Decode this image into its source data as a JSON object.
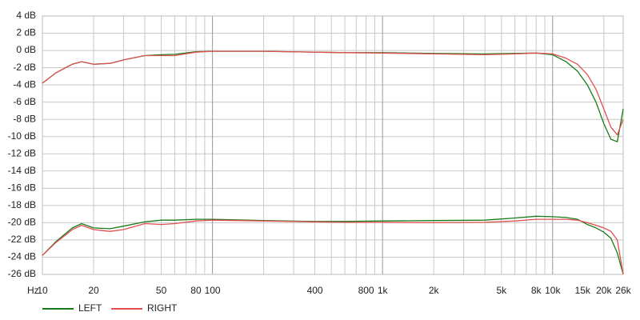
{
  "chart_data": {
    "type": "line",
    "log_x": true,
    "grid": true,
    "x_unit_label": "Hz",
    "xlim": [
      10,
      26000
    ],
    "ylim": [
      -26,
      4
    ],
    "xticks": [
      10,
      20,
      50,
      80,
      100,
      400,
      800,
      {
        "value": 1000,
        "label": "1k"
      },
      {
        "value": 2000,
        "label": "2k"
      },
      {
        "value": 5000,
        "label": "5k"
      },
      {
        "value": 8000,
        "label": "8k"
      },
      {
        "value": 10000,
        "label": "10k"
      },
      {
        "value": 15000,
        "label": "15k"
      },
      {
        "value": 20000,
        "label": "20k"
      },
      {
        "value": 26000,
        "label": "26k"
      }
    ],
    "xgrid": [
      10,
      20,
      30,
      40,
      50,
      60,
      70,
      80,
      90,
      100,
      200,
      300,
      400,
      500,
      600,
      700,
      800,
      900,
      1000,
      2000,
      3000,
      4000,
      5000,
      6000,
      7000,
      8000,
      9000,
      10000,
      20000,
      26000
    ],
    "xgrid_major": [
      10,
      100,
      1000,
      10000
    ],
    "yticks": [
      {
        "value": 4,
        "label": "4 dB"
      },
      {
        "value": 2,
        "label": "2 dB"
      },
      {
        "value": 0,
        "label": "0 dB"
      },
      {
        "value": -2,
        "label": "-2 dB"
      },
      {
        "value": -4,
        "label": "-4 dB"
      },
      {
        "value": -6,
        "label": "-6 dB"
      },
      {
        "value": -8,
        "label": "-8 dB"
      },
      {
        "value": -10,
        "label": "-10 dB"
      },
      {
        "value": -12,
        "label": "-12 dB"
      },
      {
        "value": -14,
        "label": "-14 dB"
      },
      {
        "value": -16,
        "label": "-16 dB"
      },
      {
        "value": -18,
        "label": "-18 dB"
      },
      {
        "value": -20,
        "label": "-20 dB"
      },
      {
        "value": -22,
        "label": "-22 dB"
      },
      {
        "value": -24,
        "label": "-24 dB"
      },
      {
        "value": -26,
        "label": "-26 dB"
      }
    ],
    "x": [
      10,
      12,
      15,
      17,
      20,
      25,
      30,
      40,
      50,
      60,
      80,
      100,
      200,
      400,
      600,
      1000,
      2000,
      4000,
      6000,
      8000,
      10000,
      12000,
      14000,
      16000,
      18000,
      20000,
      22000,
      24000,
      26000
    ],
    "series": [
      {
        "name": "LEFT",
        "color": "#1a7a1a",
        "curves": [
          [
            -3.8,
            -2.6,
            -1.6,
            -1.3,
            -1.6,
            -1.5,
            -1.1,
            -0.6,
            -0.5,
            -0.45,
            -0.15,
            -0.1,
            -0.1,
            -0.2,
            -0.25,
            -0.25,
            -0.35,
            -0.4,
            -0.35,
            -0.3,
            -0.5,
            -1.3,
            -2.4,
            -4,
            -6,
            -8.5,
            -10.3,
            -10.6,
            -6.8
          ],
          [
            -23.8,
            -22.2,
            -20.6,
            -20.1,
            -20.6,
            -20.7,
            -20.4,
            -19.9,
            -19.7,
            -19.7,
            -19.6,
            -19.6,
            -19.75,
            -19.85,
            -19.85,
            -19.8,
            -19.75,
            -19.7,
            -19.45,
            -19.25,
            -19.3,
            -19.4,
            -19.6,
            -20.2,
            -20.6,
            -21.1,
            -21.8,
            -23.5,
            -26
          ]
        ]
      },
      {
        "name": "RIGHT",
        "color": "#e05050",
        "curves": [
          [
            -3.8,
            -2.6,
            -1.6,
            -1.3,
            -1.6,
            -1.5,
            -1.1,
            -0.6,
            -0.6,
            -0.6,
            -0.2,
            -0.1,
            -0.1,
            -0.2,
            -0.25,
            -0.3,
            -0.4,
            -0.5,
            -0.4,
            -0.3,
            -0.4,
            -0.9,
            -1.6,
            -2.8,
            -4.5,
            -6.8,
            -8.9,
            -9.8,
            -8
          ],
          [
            -23.8,
            -22.3,
            -20.8,
            -20.3,
            -20.8,
            -21,
            -20.8,
            -20.1,
            -20.2,
            -20.1,
            -19.8,
            -19.7,
            -19.8,
            -19.9,
            -19.95,
            -19.95,
            -20,
            -19.95,
            -19.8,
            -19.6,
            -19.6,
            -19.6,
            -19.7,
            -20,
            -20.3,
            -20.6,
            -21,
            -22,
            -26
          ]
        ]
      }
    ]
  }
}
